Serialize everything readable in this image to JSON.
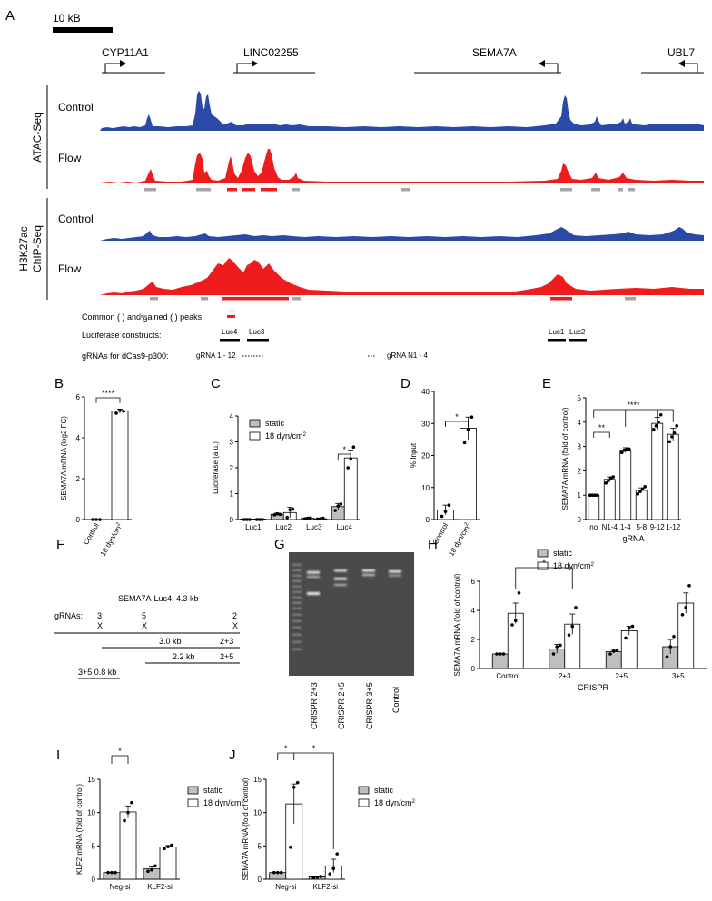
{
  "colors": {
    "blue": "#2b4aa8",
    "red": "#ee1c1c",
    "gray": "#a6a6a6",
    "static_fill": "#bfbfbf"
  },
  "panel_letters": [
    "A",
    "B",
    "C",
    "D",
    "E",
    "F",
    "G",
    "H",
    "I",
    "J"
  ],
  "A": {
    "scale_label": "10 kB",
    "genes": [
      "CYP11A1",
      "LINC02255",
      "SEMA7A",
      "UBL7"
    ],
    "atac_group": "ATAC-Seq",
    "chip_group": [
      "H3K27ac",
      "ChIP-Seq"
    ],
    "track_control": "Control",
    "track_flow": "Flow",
    "legend": {
      "pre": "Common (",
      "mid": ") and gained (",
      "post": ") peaks"
    },
    "luc_label": "Luciferase constructs:",
    "luc_names": [
      "Luc4",
      "Luc3",
      "Luc1",
      "Luc2"
    ],
    "grna_label": "gRNAs for dCas9-p300:",
    "grna_left": "gRNA 1 - 12",
    "grna_right": "gRNA N1 - 4"
  },
  "static_label": "static",
  "flow_label_main": "18 dyn/cm",
  "flow_label_sup": "2",
  "chart_data": [
    {
      "panel": "B",
      "type": "bar",
      "ylabel": "SEMA7A mRNA (log2 FC)",
      "categories": [
        "Control",
        "18 dyn/cm²"
      ],
      "values": [
        0,
        5.3
      ],
      "errors": [
        0,
        0.1
      ],
      "points": [
        [
          0,
          0,
          0
        ],
        [
          5.2,
          5.35,
          5.3
        ]
      ],
      "ylim": [
        0,
        6
      ],
      "yticks": [
        0,
        2,
        4,
        6
      ],
      "sig": "****"
    },
    {
      "panel": "C",
      "type": "bar",
      "ylabel": "Luciferase (a.u.)",
      "categories": [
        "Luc1",
        "Luc2",
        "Luc3",
        "Luc4"
      ],
      "series": [
        {
          "name": "static",
          "values": [
            0.02,
            0.2,
            0.05,
            0.5
          ],
          "errors": [
            0.01,
            0.05,
            0.02,
            0.12
          ],
          "points": [
            [
              0,
              0,
              0
            ],
            [
              0.18,
              0.22,
              0.2
            ],
            [
              0.03,
              0.05,
              0.06
            ],
            [
              0.35,
              0.52,
              0.6
            ]
          ]
        },
        {
          "name": "18 dyn/cm²",
          "values": [
            0.02,
            0.27,
            0.03,
            2.38
          ],
          "errors": [
            0.01,
            0.2,
            0.01,
            0.3
          ],
          "points": [
            [
              0,
              0,
              0
            ],
            [
              0.08,
              0.38,
              0.4
            ],
            [
              0.02,
              0.03,
              0.05
            ],
            [
              2.0,
              2.35,
              2.8
            ]
          ]
        }
      ],
      "ylim": [
        0,
        4
      ],
      "yticks": [
        0,
        1,
        2,
        3,
        4
      ],
      "sig": "*"
    },
    {
      "panel": "D",
      "type": "bar",
      "ylabel": "% Input",
      "categories": [
        "Control",
        "18 dyn/cm²"
      ],
      "values": [
        3,
        28.5
      ],
      "errors": [
        1.5,
        3.5
      ],
      "points": [
        [
          1,
          2.5,
          4.5
        ],
        [
          24,
          28,
          32
        ]
      ],
      "ylim": [
        0,
        40
      ],
      "yticks": [
        0,
        10,
        20,
        30,
        40
      ],
      "sig": "*"
    },
    {
      "panel": "E",
      "type": "bar",
      "ylabel": "SEMA7A mRNA (fold of control)",
      "xlabel": "gRNA",
      "categories": [
        "no",
        "N1-4",
        "1-4",
        "5-8",
        "9-12",
        "1-12"
      ],
      "values": [
        1,
        1.65,
        2.85,
        1.2,
        3.95,
        3.5
      ],
      "errors": [
        0.02,
        0.1,
        0.1,
        0.1,
        0.25,
        0.25
      ],
      "points": [
        [
          1,
          1,
          1,
          1
        ],
        [
          1.5,
          1.6,
          1.7,
          1.75
        ],
        [
          2.75,
          2.85,
          2.9,
          2.9
        ],
        [
          1.05,
          1.15,
          1.25,
          1.35
        ],
        [
          3.7,
          3.85,
          4.0,
          4.3
        ],
        [
          3.2,
          3.4,
          3.55,
          3.85
        ]
      ],
      "ylim": [
        0,
        5
      ],
      "yticks": [
        0,
        1,
        2,
        3,
        4,
        5
      ],
      "sig": [
        "**",
        "****"
      ]
    },
    {
      "panel": "H",
      "type": "bar",
      "ylabel": "SEMA7A mRNA (fold of control)",
      "xlabel": "CRISPR",
      "categories": [
        "Control",
        "2+3",
        "2+5",
        "3+5"
      ],
      "series": [
        {
          "name": "static",
          "values": [
            1.0,
            1.35,
            1.15,
            1.5
          ],
          "errors": [
            0.02,
            0.3,
            0.1,
            0.5
          ],
          "points": [
            [
              1,
              1,
              1
            ],
            [
              1.0,
              1.5,
              1.6
            ],
            [
              1.0,
              1.2,
              1.25
            ],
            [
              0.8,
              1.5,
              2.2
            ]
          ]
        },
        {
          "name": "18 dyn/cm²",
          "values": [
            3.8,
            3.05,
            2.6,
            4.5
          ],
          "errors": [
            0.7,
            0.7,
            0.3,
            0.7
          ],
          "points": [
            [
              3.0,
              3.3,
              5.2
            ],
            [
              2.3,
              2.9,
              4.2
            ],
            [
              2.1,
              2.8,
              2.9
            ],
            [
              3.7,
              4.2,
              5.7
            ]
          ]
        }
      ],
      "ylim": [
        0,
        6
      ],
      "yticks": [
        0,
        2,
        4,
        6
      ],
      "sig": "*"
    },
    {
      "panel": "I",
      "type": "bar",
      "ylabel": "KLF2 mRNA (fold of control)",
      "categories": [
        "Neg-si",
        "KLF2-si"
      ],
      "series": [
        {
          "name": "static",
          "values": [
            1.0,
            1.55
          ],
          "errors": [
            0.02,
            0.3
          ],
          "points": [
            [
              1,
              1,
              1
            ],
            [
              1.2,
              1.4,
              2.0
            ]
          ]
        },
        {
          "name": "18 dyn/cm²",
          "values": [
            10.1,
            4.85
          ],
          "errors": [
            0.9,
            0.2
          ],
          "points": [
            [
              8.8,
              10.0,
              11.5
            ],
            [
              4.6,
              4.9,
              5.1
            ]
          ]
        }
      ],
      "ylim": [
        0,
        15
      ],
      "yticks": [
        0,
        5,
        10,
        15
      ],
      "sig": "*"
    },
    {
      "panel": "J",
      "type": "bar",
      "ylabel": "SEMA7A mRNA (fold of control)",
      "categories": [
        "Neg-si",
        "KLF2-si"
      ],
      "series": [
        {
          "name": "static",
          "values": [
            1.0,
            0.35
          ],
          "errors": [
            0.02,
            0.1
          ],
          "points": [
            [
              1,
              1,
              1
            ],
            [
              0.2,
              0.3,
              0.4
            ]
          ]
        },
        {
          "name": "18 dyn/cm²",
          "values": [
            11.3,
            2.0
          ],
          "errors": [
            3.0,
            1.0
          ],
          "points": [
            [
              4.8,
              13.8,
              14.5
            ],
            [
              0.8,
              1.6,
              3.8
            ]
          ]
        }
      ],
      "ylim": [
        0,
        15
      ],
      "yticks": [
        0,
        5,
        10,
        15
      ],
      "sig": [
        "*",
        "*"
      ]
    }
  ],
  "F": {
    "title": "SEMA7A-Luc4: 4.3 kb",
    "grna_label": "gRNAs:",
    "sites": [
      "3",
      "5",
      "2"
    ],
    "marker": "X",
    "frags": [
      {
        "size": "3.0 kb",
        "combo": "2+3"
      },
      {
        "size": "2.2 kb",
        "combo": "2+5"
      },
      {
        "size": "3+5 0.8 kb"
      }
    ]
  },
  "G": {
    "lanes": [
      "CRISPR 2+3",
      "CRISPR 2+5",
      "CRISPR 3+5",
      "Control"
    ]
  }
}
